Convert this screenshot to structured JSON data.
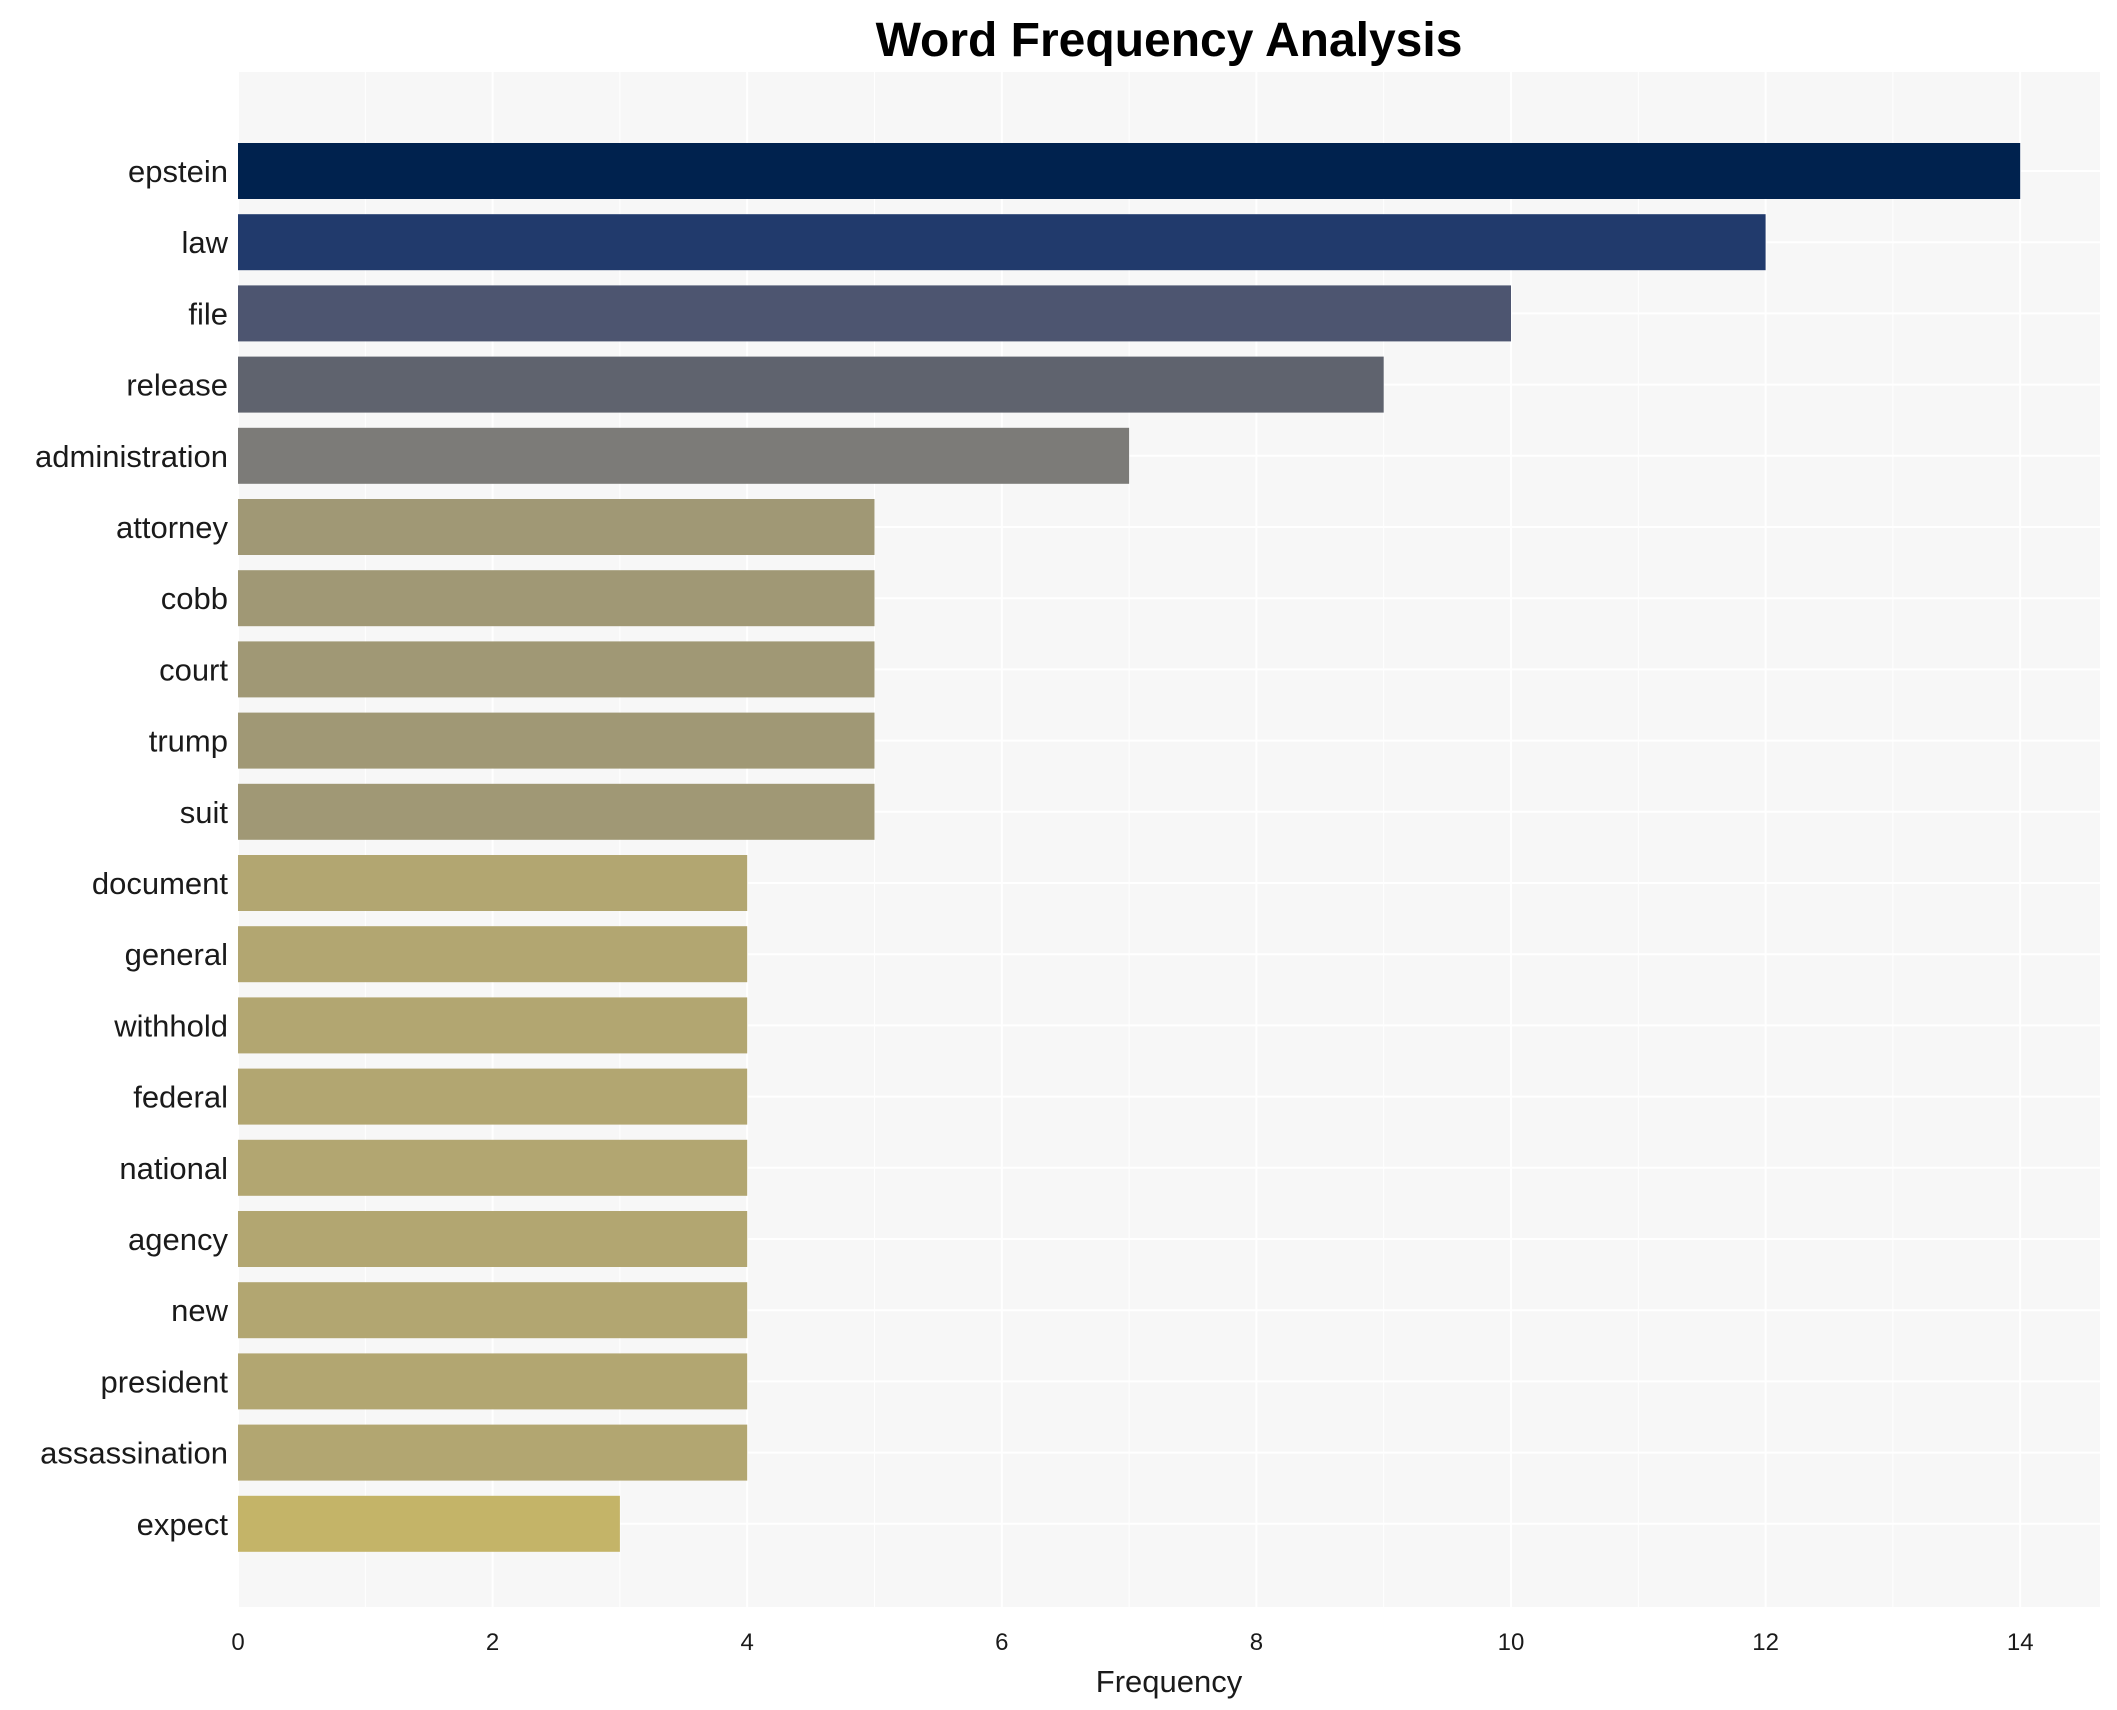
{
  "chart_data": {
    "type": "bar",
    "orientation": "horizontal",
    "title": "Word Frequency Analysis",
    "xlabel": "Frequency",
    "ylabel": "",
    "xlim": [
      0,
      14.7
    ],
    "xticks": [
      0,
      2,
      4,
      6,
      8,
      10,
      12,
      14
    ],
    "grid": true,
    "categories": [
      "epstein",
      "law",
      "file",
      "release",
      "administration",
      "attorney",
      "cobb",
      "court",
      "trump",
      "suit",
      "document",
      "general",
      "withhold",
      "federal",
      "national",
      "agency",
      "new",
      "president",
      "assassination",
      "expect"
    ],
    "values": [
      14,
      12,
      10,
      9,
      7,
      5,
      5,
      5,
      5,
      5,
      4,
      4,
      4,
      4,
      4,
      4,
      4,
      4,
      4,
      3
    ],
    "colors": [
      "#00224e",
      "#213a6c",
      "#4d5570",
      "#5f636e",
      "#7c7b78",
      "#a09875",
      "#a09875",
      "#a09875",
      "#a09875",
      "#a09875",
      "#b2a671",
      "#b2a671",
      "#b2a671",
      "#b2a671",
      "#b2a671",
      "#b2a671",
      "#b2a671",
      "#b2a671",
      "#b2a671",
      "#c4b468"
    ],
    "background": "#f7f7f7"
  }
}
